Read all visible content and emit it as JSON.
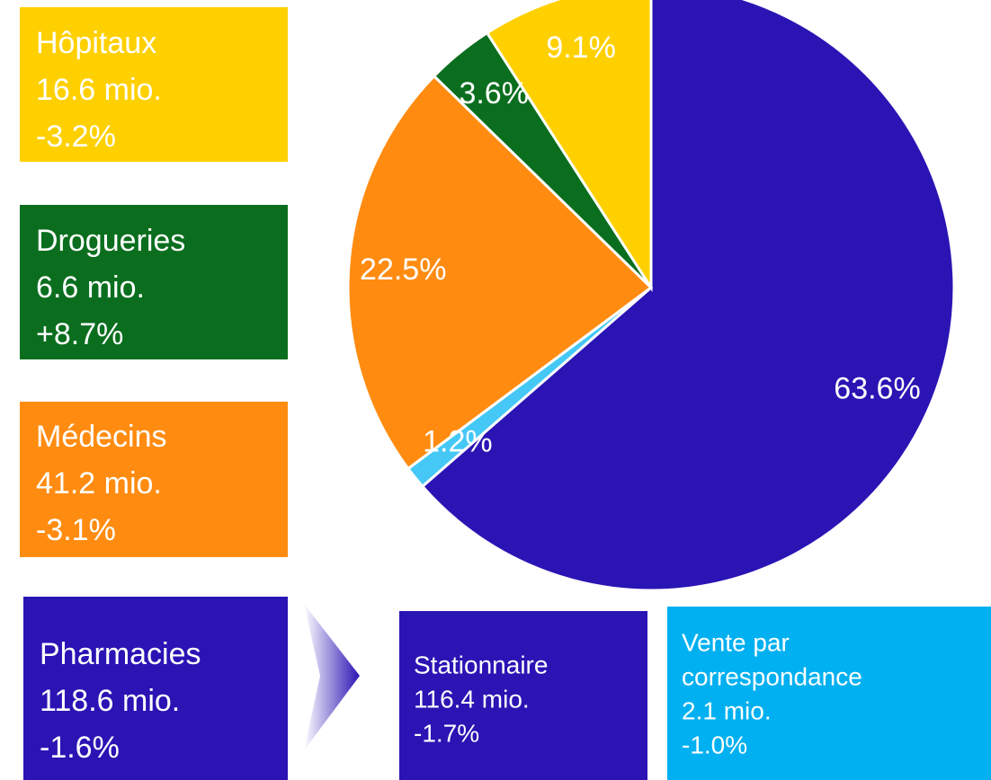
{
  "chart_data": {
    "type": "pie",
    "values": [
      63.6,
      1.2,
      22.5,
      3.6,
      9.1
    ],
    "value_labels": [
      "63.6%",
      "1.2%",
      "22.5%",
      "3.6%",
      "9.1%"
    ],
    "colors": [
      "#2a14b4",
      "#45c8f5",
      "#ff8c11",
      "#0a6e1e",
      "#ffd000"
    ],
    "boxes": [
      {
        "lines": [
          "Hôpitaux",
          "16.6 mio.",
          "-3.2%"
        ],
        "color": "#ffd000"
      },
      {
        "lines": [
          "Drogueries",
          "6.6 mio.",
          "+8.7%"
        ],
        "color": "#0a6e1e"
      },
      {
        "lines": [
          "Médecins",
          "41.2 mio.",
          "-3.1%"
        ],
        "color": "#ff8c11"
      },
      {
        "lines": [
          "Pharmacies",
          "118.6 mio.",
          "-1.6%"
        ],
        "color": "#2a14b4"
      },
      {
        "lines": [
          "Stationnaire",
          "116.4 mio.",
          "-1.7%"
        ],
        "color": "#2a14b4"
      },
      {
        "lines": [
          "Vente par",
          "correspondance",
          "2.1 mio.",
          "-1.0%"
        ],
        "color": "#00b0f0"
      }
    ]
  }
}
